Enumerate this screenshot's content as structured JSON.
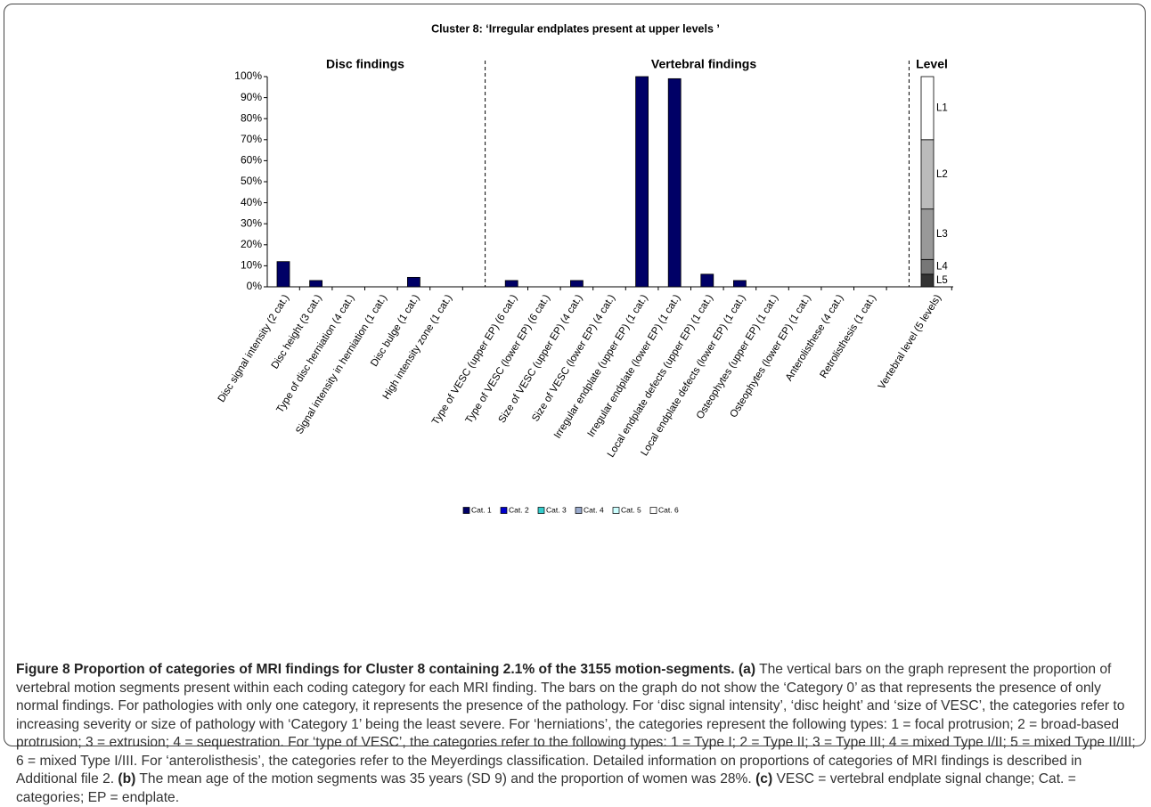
{
  "chart_data": {
    "type": "bar",
    "title": "Cluster 8: ‘Irregular endplates present at upper levels ’",
    "section_labels": [
      "Disc findings",
      "Vertebral findings",
      "Level"
    ],
    "categories": [
      "Disc signal intensity (2 cat.)",
      "Disc height (3 cat.)",
      "Type of disc herniation (4 cat.)",
      "Signal intensity in herniation (1 cat.)",
      "Disc bulge (1 cat.)",
      "High intensity zone (1 cat.)",
      null,
      "Type of VESC (upper EP) (6 cat.)",
      "Type of VESC (lower EP) (6 cat.)",
      "Size of VESC (upper EP) (4 cat.)",
      "Size of VESC (lower EP) (4 cat.)",
      "Irregular endplate (upper EP) (1 cat.)",
      "Irregular endplate (lower EP) (1 cat.)",
      "Local endplate defects (upper EP) (1 cat.)",
      "Local endplate defects (lower EP) (1 cat.)",
      "Osteophytes (upper EP) (1 cat.)",
      "Osteophytes (lower EP) (1 cat.)",
      "Anterolisthese (4 cat.)",
      "Retrolisthesis (1 cat.)",
      null,
      "Vertebral level (5 levels)"
    ],
    "series": [
      {
        "name": "Cat. 1",
        "color": "#000066",
        "values": [
          12,
          3,
          0,
          0,
          4.5,
          0,
          null,
          3,
          0,
          3,
          0,
          100,
          99,
          6,
          3,
          0,
          0,
          0,
          0,
          null,
          null
        ]
      },
      {
        "name": "Cat. 2",
        "color": "#0000cc",
        "values": [
          null,
          null,
          null,
          null,
          null,
          null,
          null,
          null,
          null,
          null,
          null,
          null,
          null,
          null,
          null,
          null,
          null,
          null,
          null,
          null,
          null
        ]
      },
      {
        "name": "Cat. 3",
        "color": "#33cccc",
        "values": [
          null,
          null,
          null,
          null,
          null,
          null,
          null,
          null,
          null,
          null,
          null,
          null,
          null,
          null,
          null,
          null,
          null,
          null,
          null,
          null,
          null
        ]
      },
      {
        "name": "Cat. 4",
        "color": "#99aacc",
        "values": [
          null,
          null,
          null,
          null,
          null,
          null,
          null,
          null,
          null,
          null,
          null,
          null,
          null,
          null,
          null,
          null,
          null,
          null,
          null,
          null,
          null
        ]
      },
      {
        "name": "Cat. 5",
        "color": "#ccffff",
        "values": [
          null,
          null,
          null,
          null,
          null,
          null,
          null,
          null,
          null,
          null,
          null,
          null,
          null,
          null,
          null,
          null,
          null,
          null,
          null,
          null,
          null
        ]
      },
      {
        "name": "Cat. 6",
        "color": "#ffffff",
        "values": [
          null,
          null,
          null,
          null,
          null,
          null,
          null,
          null,
          null,
          null,
          null,
          null,
          null,
          null,
          null,
          null,
          null,
          null,
          null,
          null,
          null
        ]
      }
    ],
    "level_segments": [
      {
        "name": "L5",
        "color": "#333333",
        "value": 6
      },
      {
        "name": "L4",
        "color": "#777777",
        "value": 7
      },
      {
        "name": "L3",
        "color": "#999999",
        "value": 24
      },
      {
        "name": "L2",
        "color": "#bbbbbb",
        "value": 33
      },
      {
        "name": "L1",
        "color": "#ffffff",
        "value": 30
      }
    ],
    "ylim": [
      0,
      100
    ],
    "yticks": [
      {
        "value": 0,
        "label": "0%"
      },
      {
        "value": 10,
        "label": "10%"
      },
      {
        "value": 20,
        "label": "20%"
      },
      {
        "value": 30,
        "label": "30%"
      },
      {
        "value": 40,
        "label": "40%"
      },
      {
        "value": 50,
        "label": "50%"
      },
      {
        "value": 60,
        "label": "60%"
      },
      {
        "value": 70,
        "label": "70%"
      },
      {
        "value": 80,
        "label": "80%"
      },
      {
        "value": 90,
        "label": "90%"
      },
      {
        "value": 100,
        "label": "100%"
      }
    ],
    "legend": "bottom"
  },
  "caption": {
    "segments": [
      {
        "bold": true,
        "text": "Figure 8 Proportion of categories of MRI findings for Cluster 8 containing 2.1% of the 3155 motion-segments."
      },
      {
        "bold": true,
        "text": " (a)"
      },
      {
        "bold": false,
        "text": " The vertical bars on the graph represent the proportion of vertebral motion segments present within each coding category for each MRI finding. The bars on the graph do not show the ‘Category 0’ as that represents the presence of only normal findings. For pathologies with only one category, it represents the presence of the pathology. For ‘disc signal intensity’, ‘disc height’ and ‘size of VESC’, the categories refer to increasing severity or size of pathology with ‘Category 1’ being the least severe. For ‘herniations’, the categories represent the following types: 1 = focal protrusion; 2 = broad-based protrusion; 3 = extrusion; 4 = sequestration. For ‘type of VESC’, the categories refer to the following types: 1 = Type I; 2 = Type II; 3 = Type III; 4 = mixed Type I/II; 5 = mixed Type II/III; 6 = mixed Type I/III. For ‘anterolisthesis’, the categories refer to the Meyerdings classification. Detailed information on proportions of categories of MRI findings is described in Additional file 2."
      },
      {
        "bold": true,
        "text": " (b)"
      },
      {
        "bold": false,
        "text": " The mean age of the motion segments was 35 years (SD 9) and the proportion of women was 28%."
      },
      {
        "bold": true,
        "text": " (c)"
      },
      {
        "bold": false,
        "text": " VESC = vertebral endplate signal change; Cat. = categories; EP = endplate."
      }
    ]
  }
}
